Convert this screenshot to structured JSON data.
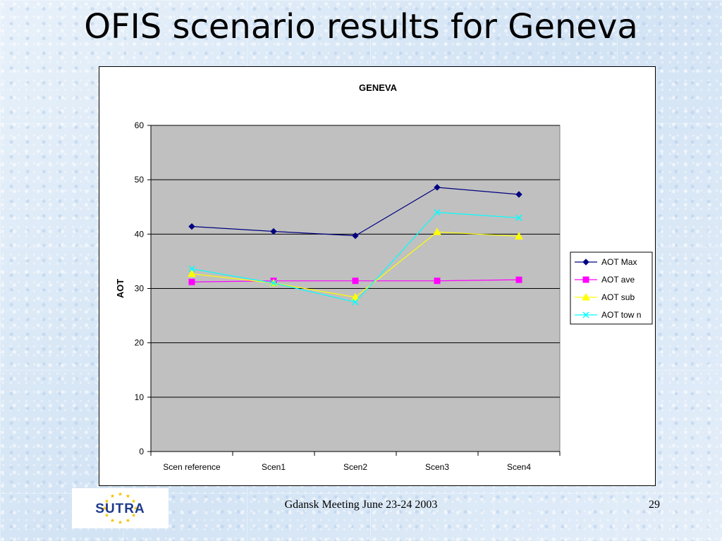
{
  "slide": {
    "title": "OFIS scenario results for Geneva",
    "footer_text": "Gdansk Meeting June 23-24 2003",
    "page_number": "29",
    "logo_text": "SUTRA"
  },
  "colors": {
    "plot_background": "#c0c0c0",
    "logo_blue": "#1e3a8a",
    "logo_red": "#d62828",
    "logo_star": "#f5c400"
  },
  "chart_data": {
    "type": "line",
    "title": "GENEVA",
    "xlabel": "",
    "ylabel": "AOT",
    "ylim": [
      0,
      60
    ],
    "yticks": [
      0,
      10,
      20,
      30,
      40,
      50,
      60
    ],
    "grid": true,
    "legend_position": "right",
    "categories": [
      "Scen reference",
      "Scen1",
      "Scen2",
      "Scen3",
      "Scen4"
    ],
    "series": [
      {
        "name": "AOT Max",
        "values": [
          41.4,
          40.5,
          39.7,
          48.6,
          47.3
        ],
        "color": "#000080",
        "marker": "diamond"
      },
      {
        "name": "AOT ave",
        "values": [
          31.2,
          31.4,
          31.4,
          31.4,
          31.6
        ],
        "color": "#ff00ff",
        "marker": "square"
      },
      {
        "name": "AOT sub",
        "values": [
          32.7,
          31.0,
          28.4,
          40.4,
          39.6
        ],
        "color": "#ffff00",
        "marker": "triangle"
      },
      {
        "name": "AOT tow n",
        "values": [
          33.6,
          31.0,
          27.5,
          44.0,
          43.0
        ],
        "color": "#00ffff",
        "marker": "x"
      }
    ]
  }
}
